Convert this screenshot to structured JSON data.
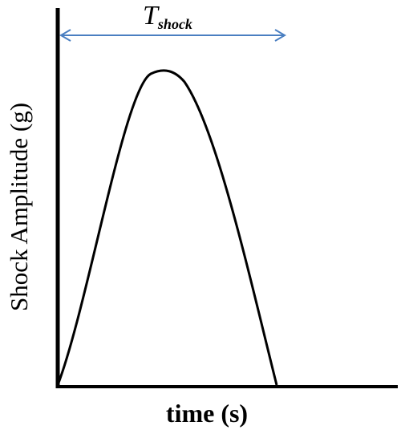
{
  "chart_data": {
    "type": "line",
    "xlabel": "time (s)",
    "ylabel": "Shock Amplitude (g)",
    "annotation": {
      "symbol": "T",
      "subscript": "shock",
      "color": "#4a7fc1"
    },
    "curve_color": "#000000",
    "axis_color": "#000000"
  }
}
